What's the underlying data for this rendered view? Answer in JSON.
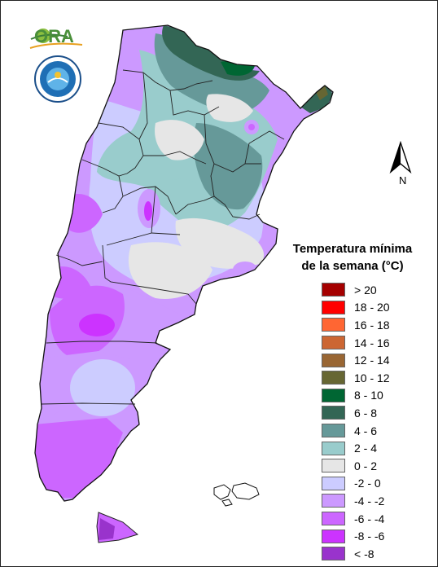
{
  "legend": {
    "title_line1": "Temperatura mínima",
    "title_line2": "de la semana (°C)",
    "items": [
      {
        "label": "> 20",
        "color": "#a50000"
      },
      {
        "label": "18 - 20",
        "color": "#ff0000"
      },
      {
        "label": "16 - 18",
        "color": "#ff6633"
      },
      {
        "label": "14 - 16",
        "color": "#cc6633"
      },
      {
        "label": "12 - 14",
        "color": "#996633"
      },
      {
        "label": "10 - 12",
        "color": "#666633"
      },
      {
        "label": "8 - 10",
        "color": "#006633"
      },
      {
        "label": "6 - 8",
        "color": "#336655"
      },
      {
        "label": "4 - 6",
        "color": "#669999"
      },
      {
        "label": "2 - 4",
        "color": "#99cccc"
      },
      {
        "label": "0 - 2",
        "color": "#e6e6e6"
      },
      {
        "label": "-2 - 0",
        "color": "#ccccff"
      },
      {
        "label": "-4 - -2",
        "color": "#cc99ff"
      },
      {
        "label": "-6 - -4",
        "color": "#cc66ff"
      },
      {
        "label": "-8 - -6",
        "color": "#cc33ff"
      },
      {
        "label": "< -8",
        "color": "#9933cc"
      }
    ]
  },
  "north_label": "N",
  "logos": {
    "ora_text": "ORA"
  }
}
